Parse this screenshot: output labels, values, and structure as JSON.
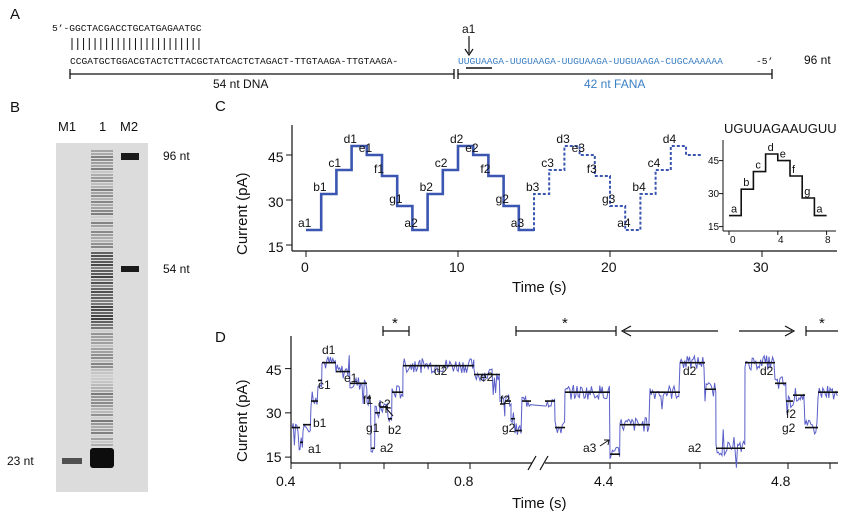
{
  "panelA": {
    "label": "A",
    "top_strand": "5’-GGCTACGACCTGCATGAGAATGC",
    "bottom_dna": "CCGATGCTGGACGTACTCTTACGCTATCACTCTAGACT-TTGTAAGA-TTGTAAGA-",
    "bottom_fana": "UUGUAAGA-UUGUAAGA-UUGUAAGA-UUGUAAGA-CUGCAAAAAA",
    "end": "-5’",
    "length_total": "96 nt",
    "marker": "a1",
    "dna_label": "54 nt DNA",
    "fana_label": "42 nt FANA",
    "colors": {
      "dna": "#111111",
      "fana": "#3a7fc4"
    }
  },
  "panelB": {
    "label": "B",
    "lanes": [
      "M1",
      "1",
      "M2"
    ],
    "markers": [
      "96 nt",
      "54 nt",
      "23 nt"
    ]
  },
  "panelC": {
    "label": "C",
    "ylabel": "Current (pA)",
    "xlabel": "Time (s)",
    "yticks": [
      "45",
      "30",
      "15"
    ],
    "xticks": [
      "0",
      "10",
      "20",
      "30"
    ],
    "inset_title": "UGUUAGAAUGUU",
    "inset_yticks": [
      "45",
      "30",
      "15"
    ],
    "inset_xticks": [
      "0",
      "4",
      "8"
    ],
    "inset_labels": [
      "a",
      "b",
      "c",
      "d",
      "e",
      "f",
      "g",
      "a"
    ],
    "state_labels": [
      "a1",
      "b1",
      "c1",
      "d1",
      "e1",
      "f1",
      "g1",
      "a2",
      "b2",
      "c2",
      "d2",
      "e2",
      "f2",
      "g2",
      "a3",
      "b3",
      "c3",
      "d3",
      "e3",
      "f3",
      "g3",
      "a4",
      "b4",
      "c4",
      "d4"
    ]
  },
  "panelD": {
    "label": "D",
    "ylabel": "Current (pA)",
    "xlabel": "Time (s)",
    "yticks": [
      "45",
      "30",
      "15"
    ],
    "xticks": [
      "0.4",
      "0.8",
      "4.4",
      "4.8"
    ],
    "star": "*",
    "labels": [
      "d1",
      "e1",
      "c1",
      "f1",
      "b1",
      "c2",
      "g1",
      "b2",
      "a1",
      "a2",
      "d2",
      "e2",
      "f2",
      "g2",
      "a3",
      "d2",
      "a2",
      "d2",
      "f2",
      "g2"
    ]
  },
  "chart_data": [
    {
      "type": "line",
      "title": "",
      "xlabel": "Time (s)",
      "ylabel": "Current (pA)",
      "xlim": [
        -1,
        37
      ],
      "ylim": [
        13,
        52
      ],
      "series": [
        {
          "x": [
            0,
            1,
            1,
            2,
            2,
            3,
            3,
            5,
            5,
            6,
            6,
            7,
            7,
            8,
            8,
            9,
            9,
            10,
            10,
            11,
            11,
            13,
            13,
            14,
            14,
            15
          ],
          "y": [
            20,
            20,
            32,
            32,
            40,
            40,
            48,
            48,
            45,
            45,
            38,
            38,
            28,
            28,
            20,
            20,
            32,
            32,
            40,
            40,
            48,
            48,
            45,
            45,
            38,
            38
          ]
        }
      ]
    },
    {
      "type": "line",
      "title": "UGUUAGAAUGUU",
      "xlabel": "",
      "ylabel": "",
      "xlim": [
        -0.5,
        8.5
      ],
      "ylim": [
        13,
        52
      ],
      "series": [
        {
          "x": [
            0,
            1,
            1,
            2,
            2,
            3,
            3,
            4,
            4,
            5,
            5,
            6,
            6,
            7,
            7,
            8
          ],
          "y": [
            20,
            20,
            32,
            32,
            40,
            40,
            48,
            48,
            45,
            45,
            38,
            38,
            28,
            28,
            20,
            20
          ]
        }
      ]
    }
  ]
}
